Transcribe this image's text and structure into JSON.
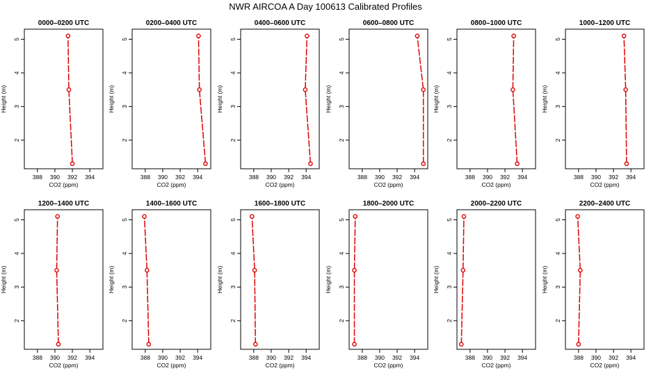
{
  "figure_title": "NWR AIRCOA A  Day 100613  Calibrated Profiles",
  "colors": {
    "line": "#dd0000",
    "axis": "#000000",
    "background": "#ffffff"
  },
  "chart_data": [
    {
      "type": "line",
      "title": "0000–0200 UTC",
      "xlabel": "CO2 (ppm)",
      "ylabel": "Height (m)",
      "xlim": [
        386.5,
        395.5
      ],
      "ylim": [
        1.15,
        5.3
      ],
      "xticks": [
        "388",
        "390",
        "392",
        "394"
      ],
      "yticks": [
        "2",
        "3",
        "4",
        "5"
      ],
      "x": [
        392.0,
        391.6,
        391.5
      ],
      "y": [
        1.3,
        3.5,
        5.1
      ]
    },
    {
      "type": "line",
      "title": "0200–0400 UTC",
      "xlabel": "CO2 (ppm)",
      "ylabel": "Height (m)",
      "xlim": [
        386.5,
        395.5
      ],
      "ylim": [
        1.15,
        5.3
      ],
      "xticks": [
        "388",
        "390",
        "392",
        "394"
      ],
      "yticks": [
        "2",
        "3",
        "4",
        "5"
      ],
      "x": [
        394.9,
        394.2,
        394.1
      ],
      "y": [
        1.3,
        3.5,
        5.1
      ]
    },
    {
      "type": "line",
      "title": "0400–0600 UTC",
      "xlabel": "CO2 (ppm)",
      "ylabel": "Height (m)",
      "xlim": [
        386.5,
        395.5
      ],
      "ylim": [
        1.15,
        5.3
      ],
      "xticks": [
        "388",
        "390",
        "392",
        "394"
      ],
      "yticks": [
        "2",
        "3",
        "4",
        "5"
      ],
      "x": [
        394.5,
        393.9,
        394.1
      ],
      "y": [
        1.3,
        3.5,
        5.1
      ]
    },
    {
      "type": "line",
      "title": "0600–0800 UTC",
      "xlabel": "CO2 (ppm)",
      "ylabel": "Height (m)",
      "xlim": [
        386.5,
        395.5
      ],
      "ylim": [
        1.15,
        5.3
      ],
      "xticks": [
        "388",
        "390",
        "392",
        "394"
      ],
      "yticks": [
        "2",
        "3",
        "4",
        "5"
      ],
      "x": [
        395.0,
        395.0,
        394.3
      ],
      "y": [
        1.3,
        3.5,
        5.1
      ]
    },
    {
      "type": "line",
      "title": "0800–1000 UTC",
      "xlabel": "CO2 (ppm)",
      "ylabel": "Height (m)",
      "xlim": [
        386.5,
        395.5
      ],
      "ylim": [
        1.15,
        5.3
      ],
      "xticks": [
        "388",
        "390",
        "392",
        "394"
      ],
      "yticks": [
        "2",
        "3",
        "4",
        "5"
      ],
      "x": [
        393.4,
        392.9,
        393.0
      ],
      "y": [
        1.3,
        3.5,
        5.1
      ]
    },
    {
      "type": "line",
      "title": "1000–1200 UTC",
      "xlabel": "CO2 (ppm)",
      "ylabel": "Height (m)",
      "xlim": [
        386.5,
        395.5
      ],
      "ylim": [
        1.15,
        5.3
      ],
      "xticks": [
        "388",
        "390",
        "392",
        "394"
      ],
      "yticks": [
        "2",
        "3",
        "4",
        "5"
      ],
      "x": [
        393.5,
        393.4,
        393.2
      ],
      "y": [
        1.3,
        3.5,
        5.1
      ]
    },
    {
      "type": "line",
      "title": "1200–1400 UTC",
      "xlabel": "CO2 (ppm)",
      "ylabel": "Height (m)",
      "xlim": [
        386.5,
        395.5
      ],
      "ylim": [
        1.15,
        5.3
      ],
      "xticks": [
        "388",
        "390",
        "392",
        "394"
      ],
      "yticks": [
        "2",
        "3",
        "4",
        "5"
      ],
      "x": [
        390.4,
        390.2,
        390.3
      ],
      "y": [
        1.3,
        3.5,
        5.1
      ]
    },
    {
      "type": "line",
      "title": "1400–1600 UTC",
      "xlabel": "CO2 (ppm)",
      "ylabel": "Height (m)",
      "xlim": [
        386.5,
        395.5
      ],
      "ylim": [
        1.15,
        5.3
      ],
      "xticks": [
        "388",
        "390",
        "392",
        "394"
      ],
      "yticks": [
        "2",
        "3",
        "4",
        "5"
      ],
      "x": [
        388.4,
        388.2,
        387.9
      ],
      "y": [
        1.3,
        3.5,
        5.1
      ]
    },
    {
      "type": "line",
      "title": "1600–1800 UTC",
      "xlabel": "CO2 (ppm)",
      "ylabel": "Height (m)",
      "xlim": [
        386.5,
        395.5
      ],
      "ylim": [
        1.15,
        5.3
      ],
      "xticks": [
        "388",
        "390",
        "392",
        "394"
      ],
      "yticks": [
        "2",
        "3",
        "4",
        "5"
      ],
      "x": [
        388.2,
        388.1,
        387.8
      ],
      "y": [
        1.3,
        3.5,
        5.1
      ]
    },
    {
      "type": "line",
      "title": "1800–2000 UTC",
      "xlabel": "CO2 (ppm)",
      "ylabel": "Height (m)",
      "xlim": [
        386.5,
        395.5
      ],
      "ylim": [
        1.15,
        5.3
      ],
      "xticks": [
        "388",
        "390",
        "392",
        "394"
      ],
      "yticks": [
        "2",
        "3",
        "4",
        "5"
      ],
      "x": [
        387.1,
        387.1,
        387.2
      ],
      "y": [
        1.3,
        3.5,
        5.1
      ]
    },
    {
      "type": "line",
      "title": "2000–2200 UTC",
      "xlabel": "CO2 (ppm)",
      "ylabel": "Height (m)",
      "xlim": [
        386.5,
        395.5
      ],
      "ylim": [
        1.15,
        5.3
      ],
      "xticks": [
        "388",
        "390",
        "392",
        "394"
      ],
      "yticks": [
        "2",
        "3",
        "4",
        "5"
      ],
      "x": [
        387.0,
        387.2,
        387.3
      ],
      "y": [
        1.3,
        3.5,
        5.1
      ]
    },
    {
      "type": "line",
      "title": "2200–2400 UTC",
      "xlabel": "CO2 (ppm)",
      "ylabel": "Height (m)",
      "xlim": [
        386.5,
        395.5
      ],
      "ylim": [
        1.15,
        5.3
      ],
      "xticks": [
        "388",
        "390",
        "392",
        "394"
      ],
      "yticks": [
        "2",
        "3",
        "4",
        "5"
      ],
      "x": [
        388.0,
        388.2,
        387.9
      ],
      "y": [
        1.3,
        3.5,
        5.1
      ]
    }
  ]
}
